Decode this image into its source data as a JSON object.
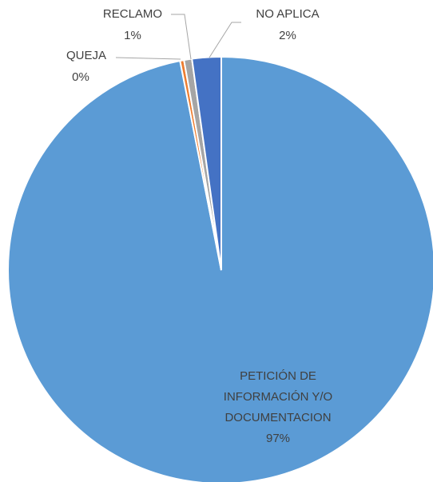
{
  "chart_data": {
    "type": "pie",
    "categories": [
      "PETICIÓN DE INFORMACIÓN Y/O DOCUMENTACION",
      "QUEJA",
      "RECLAMO",
      "NO APLICA"
    ],
    "values": [
      96.9,
      0.3,
      0.6,
      2.2
    ],
    "value_labels": [
      "97%",
      "0%",
      "1%",
      "2%"
    ],
    "colors": [
      "#5b9bd5",
      "#ed7d31",
      "#a5a5a5",
      "#4472c4"
    ]
  }
}
